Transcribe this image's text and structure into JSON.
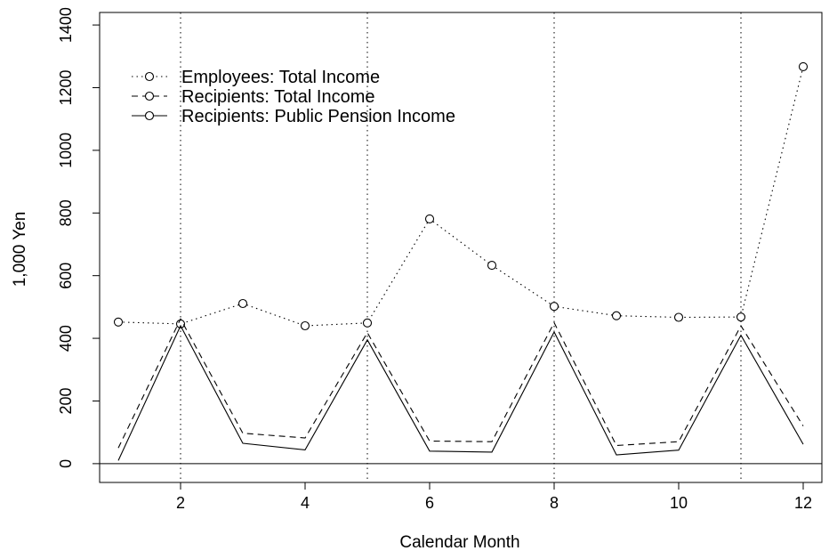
{
  "chart_data": {
    "type": "line",
    "xlabel": "Calendar Month",
    "ylabel": "1,000 Yen",
    "xlim": [
      0.7,
      12.3
    ],
    "ylim": [
      -60,
      1440
    ],
    "xticks": [
      2,
      4,
      6,
      8,
      10,
      12
    ],
    "yticks": [
      0,
      200,
      400,
      600,
      800,
      1000,
      1200,
      1400
    ],
    "grid": "none",
    "reference_lines": {
      "vertical_dotted_at_x": [
        2,
        5,
        8,
        11
      ],
      "horizontal_solid_at_y": 0
    },
    "legend_position": "top-left",
    "x": [
      1,
      2,
      3,
      4,
      5,
      6,
      7,
      8,
      9,
      10,
      11,
      12
    ],
    "series": [
      {
        "name": "Employees: Total Income",
        "line_style": "dotted",
        "marker": "circle",
        "values": [
          452,
          446,
          511,
          440,
          449,
          781,
          633,
          502,
          472,
          467,
          468,
          1267
        ]
      },
      {
        "name": "Recipients: Total Income",
        "line_style": "dashed",
        "marker": "none",
        "values": [
          50,
          462,
          97,
          82,
          418,
          72,
          70,
          450,
          58,
          70,
          440,
          120
        ]
      },
      {
        "name": "Recipients: Public Pension Income",
        "line_style": "solid",
        "marker": "none",
        "values": [
          10,
          440,
          65,
          44,
          395,
          40,
          37,
          420,
          28,
          43,
          410,
          62
        ]
      }
    ]
  }
}
